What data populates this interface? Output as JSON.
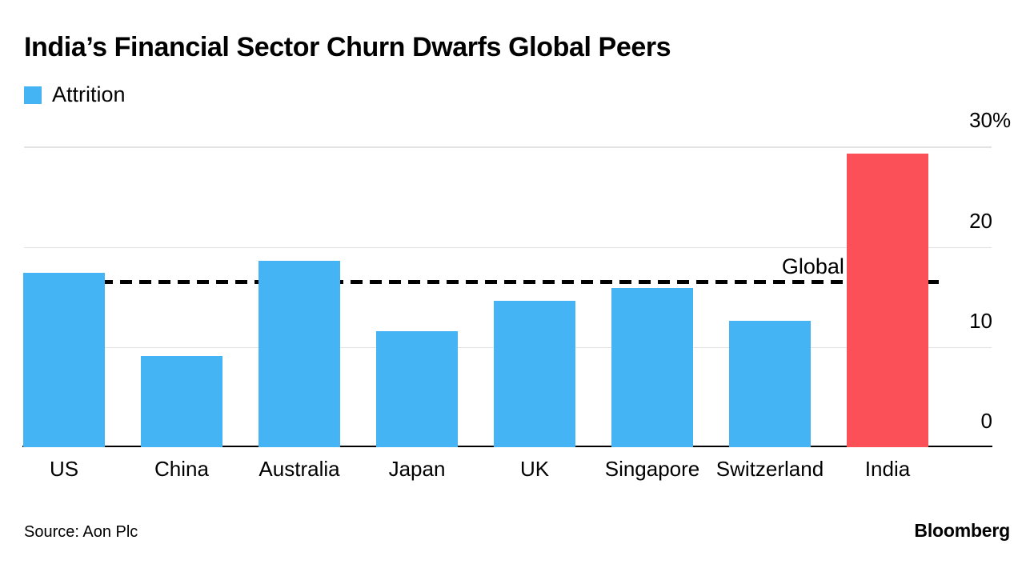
{
  "header": {
    "title": "India’s Financial Sector Churn Dwarfs Global Peers"
  },
  "legend": {
    "items": [
      {
        "label": "Attrition",
        "color": "#45b4f5"
      }
    ]
  },
  "chart_data": {
    "type": "bar",
    "title": "India’s Financial Sector Churn Dwarfs Global Peers",
    "series_name": "Attrition",
    "categories": [
      "US",
      "China",
      "Australia",
      "Japan",
      "UK",
      "Singapore",
      "Switzerland",
      "India"
    ],
    "values": [
      17.4,
      9.1,
      18.6,
      11.6,
      14.6,
      15.9,
      12.6,
      29.3
    ],
    "bar_colors": [
      "#45b4f5",
      "#45b4f5",
      "#45b4f5",
      "#45b4f5",
      "#45b4f5",
      "#45b4f5",
      "#45b4f5",
      "#fc5059"
    ],
    "highlight_category": "India",
    "highlight_color": "#fc5059",
    "default_color": "#45b4f5",
    "reference_line": {
      "label": "Global average",
      "value": 16.5,
      "style": "dashed",
      "color": "#000000"
    },
    "y_ticks": [
      {
        "value": 0,
        "label": "0",
        "suffix": ""
      },
      {
        "value": 10,
        "label": "10",
        "suffix": ""
      },
      {
        "value": 20,
        "label": "20",
        "suffix": ""
      },
      {
        "value": 30,
        "label": "30",
        "suffix": "%"
      }
    ],
    "ylim": [
      0,
      30
    ],
    "xlabel": "",
    "ylabel": "",
    "grid": "horizontal",
    "legend_position": "top-left",
    "gridline_color": "#e3e3e3",
    "axis_color": "#000000"
  },
  "footer": {
    "source": "Source: Aon Plc",
    "brand": "Bloomberg"
  }
}
